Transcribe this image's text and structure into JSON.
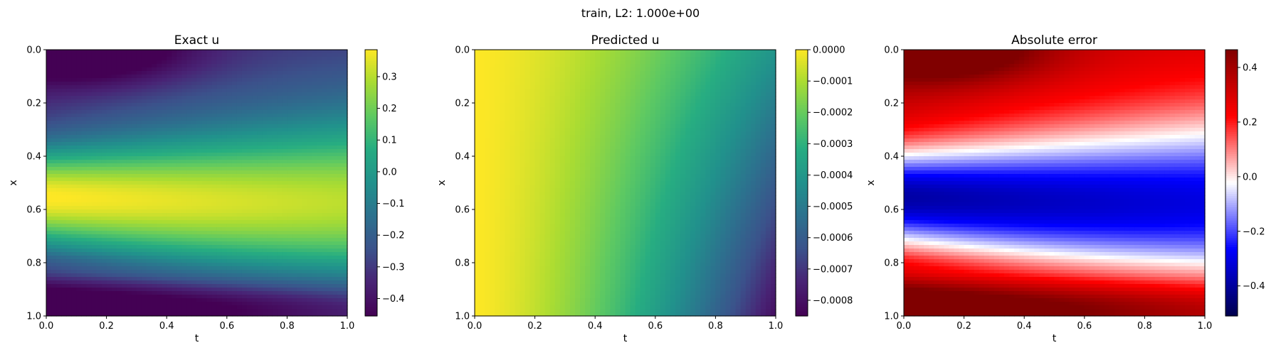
{
  "figure_title": "train, L2: 1.000e+00",
  "chart_data": [
    {
      "type": "heatmap",
      "title": "Exact u",
      "xlabel": "t",
      "ylabel": "x",
      "xlim": [
        0.0,
        1.0
      ],
      "ylim": [
        1.0,
        0.0
      ],
      "xticks": [
        "0.0",
        "0.2",
        "0.4",
        "0.6",
        "0.8",
        "1.0"
      ],
      "yticks": [
        "0.0",
        "0.2",
        "0.4",
        "0.6",
        "0.8",
        "1.0"
      ],
      "colormap": "viridis",
      "clim": [
        -0.455,
        0.385
      ],
      "colorbar_ticks": [
        {
          "value": 0.3,
          "label": "0.3"
        },
        {
          "value": 0.2,
          "label": "0.2"
        },
        {
          "value": 0.1,
          "label": "0.1"
        },
        {
          "value": 0.0,
          "label": "0.0"
        },
        {
          "value": -0.1,
          "label": "−0.1"
        },
        {
          "value": -0.2,
          "label": "−0.2"
        },
        {
          "value": -0.3,
          "label": "−0.3"
        },
        {
          "value": -0.4,
          "label": "−0.4"
        }
      ]
    },
    {
      "type": "heatmap",
      "title": "Predicted u",
      "xlabel": "t",
      "ylabel": "x",
      "xlim": [
        0.0,
        1.0
      ],
      "ylim": [
        1.0,
        0.0
      ],
      "xticks": [
        "0.0",
        "0.2",
        "0.4",
        "0.6",
        "0.8",
        "1.0"
      ],
      "yticks": [
        "0.0",
        "0.2",
        "0.4",
        "0.6",
        "0.8",
        "1.0"
      ],
      "colormap": "viridis",
      "clim": [
        -0.00085,
        0.0
      ],
      "colorbar_ticks": [
        {
          "value": 0.0,
          "label": "0.0000"
        },
        {
          "value": -0.0001,
          "label": "−0.0001"
        },
        {
          "value": -0.0002,
          "label": "−0.0002"
        },
        {
          "value": -0.0003,
          "label": "−0.0003"
        },
        {
          "value": -0.0004,
          "label": "−0.0004"
        },
        {
          "value": -0.0005,
          "label": "−0.0005"
        },
        {
          "value": -0.0006,
          "label": "−0.0006"
        },
        {
          "value": -0.0007,
          "label": "−0.0007"
        },
        {
          "value": -0.0008,
          "label": "−0.0008"
        }
      ]
    },
    {
      "type": "heatmap",
      "title": "Absolute error",
      "xlabel": "t",
      "ylabel": "x",
      "xlim": [
        0.0,
        1.0
      ],
      "ylim": [
        1.0,
        0.0
      ],
      "xticks": [
        "0.0",
        "0.2",
        "0.4",
        "0.6",
        "0.8",
        "1.0"
      ],
      "yticks": [
        "0.0",
        "0.2",
        "0.4",
        "0.6",
        "0.8",
        "1.0"
      ],
      "colormap": "seismic",
      "clim": [
        -0.51,
        0.465
      ],
      "colorbar_ticks": [
        {
          "value": 0.4,
          "label": "0.4"
        },
        {
          "value": 0.2,
          "label": "0.2"
        },
        {
          "value": 0.0,
          "label": "0.0"
        },
        {
          "value": -0.2,
          "label": "−0.2"
        },
        {
          "value": -0.4,
          "label": "−0.4"
        }
      ]
    }
  ]
}
